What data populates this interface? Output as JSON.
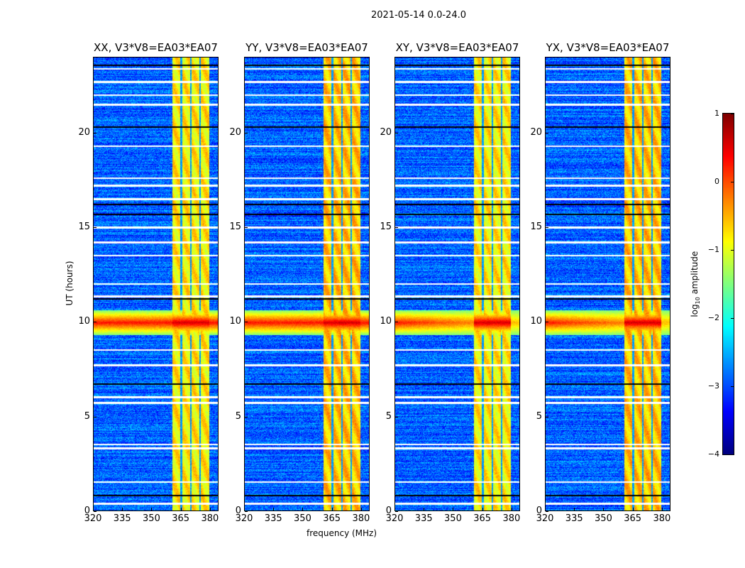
{
  "chart_data": {
    "type": "heatmap",
    "suptitle": "2021-05-14 0.0-24.0",
    "panels": [
      {
        "title": "XX, V3*V8=EA03*EA07"
      },
      {
        "title": "YY, V3*V8=EA03*EA07"
      },
      {
        "title": "XY, V3*V8=EA03*EA07"
      },
      {
        "title": "YX, V3*V8=EA03*EA07"
      }
    ],
    "xlabel": "frequency (MHz)",
    "ylabel": "UT (hours)",
    "xlim": [
      320,
      384.4
    ],
    "ylim": [
      0,
      24
    ],
    "xticks": [
      "320",
      "335",
      "350",
      "365",
      "380"
    ],
    "xtick_values": [
      320,
      335,
      350,
      365,
      380
    ],
    "yticks": [
      "0",
      "5",
      "10",
      "15",
      "20"
    ],
    "ytick_values": [
      0,
      5,
      10,
      15,
      20
    ],
    "colorbar": {
      "label": "log10 amplitude",
      "label_main": "log",
      "label_sub": "10",
      "label_rest": " amplitude",
      "colormap": "jet",
      "range": [
        -4,
        1
      ],
      "ticks": [
        "1",
        "0",
        "−1",
        "−2",
        "−3",
        "−4"
      ],
      "tick_values": [
        1,
        0,
        -1,
        -2,
        -3,
        -4
      ]
    },
    "features": {
      "background_level": -2.9,
      "strong_band_mhz": [
        361,
        380
      ],
      "band_level": -0.8,
      "band_gaps_mhz": [
        365.5,
        370.5,
        375.3
      ],
      "rfi_event_ut": [
        9.3,
        10.6
      ],
      "rfi_level": 0.3,
      "flagged_ut": [
        0.35,
        1.5,
        3.3,
        3.5,
        5.7,
        6.0,
        7.7,
        8.5,
        11.35,
        12.0,
        13.5,
        14.2,
        15.0,
        16.5,
        17.2,
        17.6,
        19.3,
        21.5,
        22.0,
        22.7,
        23.4
      ],
      "dark_ut": [
        0.8,
        6.7,
        11.2,
        15.7,
        16.2,
        20.3,
        23.6
      ]
    }
  }
}
